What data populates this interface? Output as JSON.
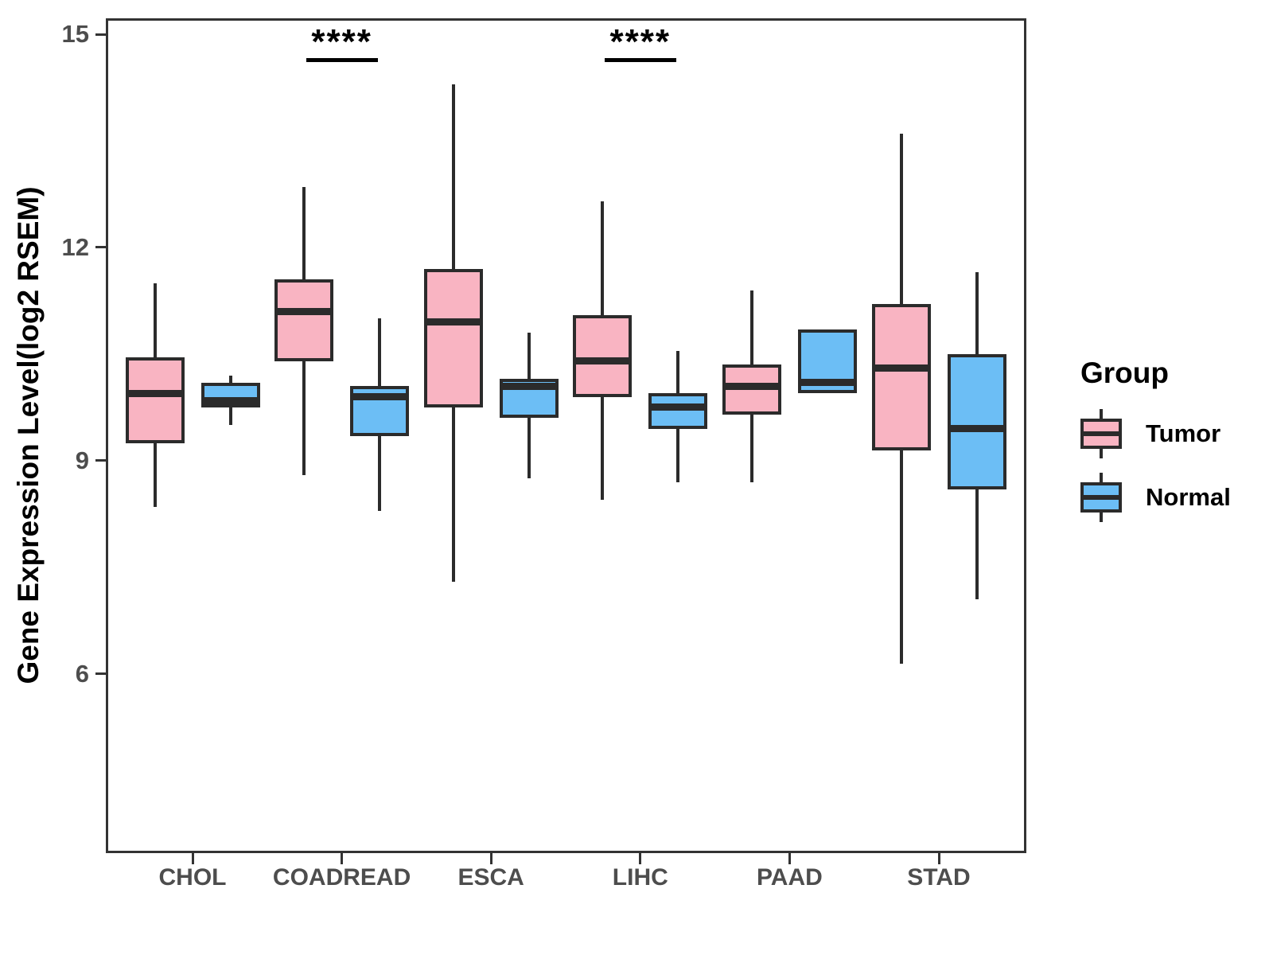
{
  "y_axis": {
    "label": "Gene Expression Level(log2 RSEM)",
    "ticks": [
      15,
      12,
      9,
      6
    ]
  },
  "x_axis": {
    "categories": [
      "CHOL",
      "COADREAD",
      "ESCA",
      "LIHC",
      "PAAD",
      "STAD"
    ]
  },
  "legend": {
    "title": "Group",
    "items": [
      {
        "label": "Tumor",
        "color": "#F9B4C2"
      },
      {
        "label": "Normal",
        "color": "#6CBEF5"
      }
    ]
  },
  "chart_data": {
    "type": "boxplot",
    "title": "",
    "xlabel": "",
    "ylabel": "Gene Expression Level(log2 RSEM)",
    "y_ticks": [
      15,
      12,
      9,
      6
    ],
    "ylim": [
      3.5,
      15.25
    ],
    "grid": false,
    "legend_position": "right",
    "categories": [
      "CHOL",
      "COADREAD",
      "ESCA",
      "LIHC",
      "PAAD",
      "STAD"
    ],
    "series": [
      {
        "name": "Tumor",
        "color": "#F9B4C2",
        "boxes": [
          {
            "lo": 8.35,
            "q1": 9.25,
            "med": 9.95,
            "q3": 10.45,
            "hi": 11.5
          },
          {
            "lo": 8.8,
            "q1": 10.4,
            "med": 11.1,
            "q3": 11.55,
            "hi": 12.85
          },
          {
            "lo": 7.3,
            "q1": 9.75,
            "med": 10.95,
            "q3": 11.7,
            "hi": 14.3
          },
          {
            "lo": 8.45,
            "q1": 9.9,
            "med": 10.4,
            "q3": 11.05,
            "hi": 12.65
          },
          {
            "lo": 8.7,
            "q1": 9.65,
            "med": 10.05,
            "q3": 10.35,
            "hi": 11.4
          },
          {
            "lo": 6.15,
            "q1": 9.15,
            "med": 10.3,
            "q3": 11.2,
            "hi": 13.6
          }
        ]
      },
      {
        "name": "Normal",
        "color": "#6CBEF5",
        "boxes": [
          {
            "lo": 9.5,
            "q1": 9.75,
            "med": 9.85,
            "q3": 10.1,
            "hi": 10.2
          },
          {
            "lo": 8.3,
            "q1": 9.35,
            "med": 9.9,
            "q3": 10.05,
            "hi": 11.0
          },
          {
            "lo": 8.75,
            "q1": 9.6,
            "med": 10.05,
            "q3": 10.15,
            "hi": 10.8
          },
          {
            "lo": 8.7,
            "q1": 9.45,
            "med": 9.75,
            "q3": 9.95,
            "hi": 10.55
          },
          {
            "lo": 9.95,
            "q1": 9.95,
            "med": 10.1,
            "q3": 10.85,
            "hi": 10.85
          },
          {
            "lo": 7.05,
            "q1": 8.6,
            "med": 9.45,
            "q3": 10.5,
            "hi": 11.65
          }
        ]
      }
    ],
    "significance": [
      {
        "category": "COADREAD",
        "label": "****"
      },
      {
        "category": "LIHC",
        "label": "****"
      }
    ]
  }
}
